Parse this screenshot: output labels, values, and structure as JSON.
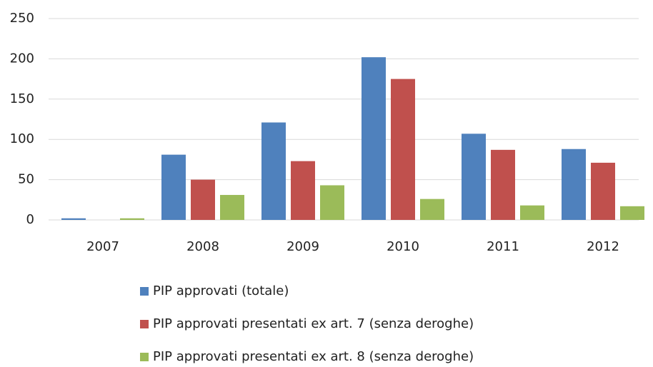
{
  "chart_data": {
    "type": "bar",
    "categories": [
      "2007",
      "2008",
      "2009",
      "2010",
      "2011",
      "2012"
    ],
    "series": [
      {
        "name": "PIP approvati (totale)",
        "color": "#4f81bd",
        "values": [
          2,
          81,
          121,
          202,
          107,
          88
        ]
      },
      {
        "name": "PIP approvati presentati ex art. 7 (senza deroghe)",
        "color": "#c0504d",
        "values": [
          0,
          50,
          73,
          175,
          87,
          71
        ]
      },
      {
        "name": "PIP approvati presentati ex art. 8 (senza deroghe)",
        "color": "#9bbb59",
        "values": [
          2,
          31,
          43,
          26,
          18,
          17
        ]
      }
    ],
    "ylim": [
      0,
      250
    ],
    "yticks": [
      0,
      50,
      100,
      150,
      200,
      250
    ],
    "grid": true,
    "legend": "bottom"
  }
}
